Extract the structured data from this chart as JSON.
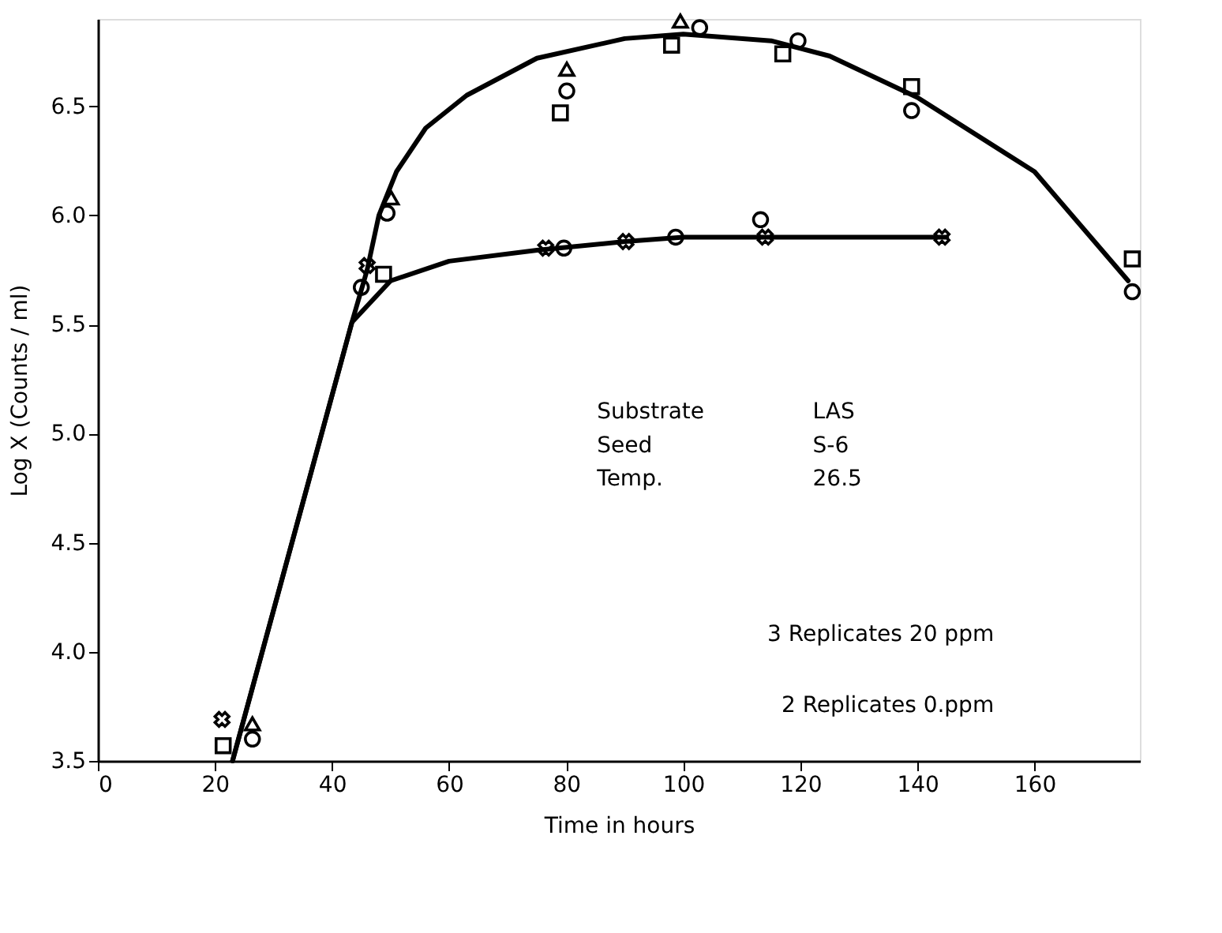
{
  "chart_data": {
    "type": "scatter",
    "xlabel": "Time in hours",
    "ylabel": "Log X (Counts / ml)",
    "xlim": [
      0,
      178
    ],
    "ylim": [
      3.5,
      6.9
    ],
    "xticks": [
      0,
      20,
      40,
      60,
      80,
      100,
      120,
      140,
      160
    ],
    "yticks": [
      3.5,
      {
        "value": 4,
        "label": "4.0"
      },
      4.5,
      {
        "value": 5,
        "label": "5.0"
      },
      5.5,
      {
        "value": 6,
        "label": "6.0"
      },
      6.5
    ],
    "grid": false,
    "annotations": [
      "Substrate",
      "LAS",
      "Seed",
      "S-6",
      "Temp.",
      "26.5",
      "3 Replicates 20 ppm",
      "2 Replicates 0.ppm"
    ],
    "series": [
      {
        "type": "line",
        "color": "#000000",
        "x": [
          23,
          43.4,
          46,
          48,
          51,
          56,
          63,
          75,
          90,
          100,
          115,
          125,
          140,
          160,
          176
        ],
        "values": [
          3.5,
          5.51,
          5.75,
          6.0,
          6.2,
          6.4,
          6.55,
          6.72,
          6.81,
          6.83,
          6.8,
          6.73,
          6.54,
          6.2,
          5.7
        ]
      },
      {
        "type": "line",
        "color": "#000000",
        "x": [
          23,
          43.4,
          50,
          60,
          75,
          90,
          100,
          145
        ],
        "values": [
          3.5,
          5.51,
          5.7,
          5.79,
          5.84,
          5.88,
          5.9,
          5.9
        ]
      },
      {
        "marker": "triangle",
        "color": "#000000",
        "x": [
          26.4,
          50.1,
          80.1,
          99.5
        ],
        "values": [
          3.67,
          6.08,
          6.67,
          6.89
        ]
      },
      {
        "marker": "circle",
        "color": "#000000",
        "x": [
          26.4,
          49.4,
          80.1,
          102.8,
          119.6,
          139,
          176.7
        ],
        "values": [
          3.6,
          6.01,
          6.57,
          6.86,
          6.8,
          6.48,
          5.65
        ]
      },
      {
        "marker": "square",
        "color": "#000000",
        "x": [
          21.4,
          48.8,
          79,
          98,
          117,
          139,
          176.7
        ],
        "values": [
          3.57,
          5.73,
          6.47,
          6.78,
          6.74,
          6.59,
          5.8
        ]
      },
      {
        "marker": "cross",
        "color": "#000000",
        "x": [
          21.2,
          46.0,
          76.5,
          90.2,
          114,
          144.2
        ],
        "values": [
          3.69,
          5.77,
          5.85,
          5.88,
          5.9,
          5.9
        ]
      },
      {
        "marker": "circle",
        "color": "#000000",
        "x": [
          45.0,
          79.6,
          98.7,
          113.2
        ],
        "values": [
          5.67,
          5.85,
          5.9,
          5.98
        ]
      }
    ]
  }
}
